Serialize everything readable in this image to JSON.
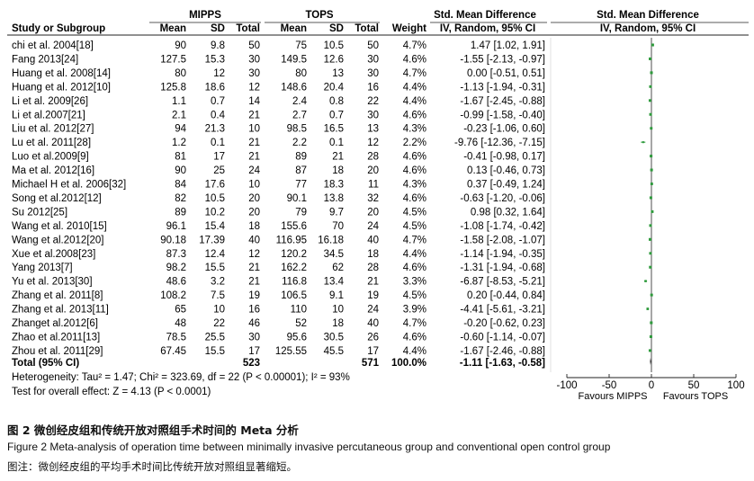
{
  "headers": {
    "group1": "MIPPS",
    "group2": "TOPS",
    "smd_text": "Std. Mean Difference",
    "smd_plot": "Std. Mean Difference",
    "study": "Study or Subgroup",
    "mean1": "Mean",
    "sd1": "SD",
    "total1": "Total",
    "mean2": "Mean",
    "sd2": "SD",
    "total2": "Total",
    "weight": "Weight",
    "method_text": "IV, Random, 95% CI",
    "method_plot": "IV, Random, 95% CI"
  },
  "chart_data": {
    "type": "forest",
    "studies": [
      {
        "name": "chi et al. 2004[18]",
        "mean1": "90",
        "sd1": "9.8",
        "total1": "50",
        "mean2": "75",
        "sd2": "10.5",
        "total2": "50",
        "weight": "4.7%",
        "ci_text": "1.47 [1.02, 1.91]",
        "smd": 1.47,
        "lo": 1.02,
        "hi": 1.91
      },
      {
        "name": "Fang 2013[24]",
        "mean1": "127.5",
        "sd1": "15.3",
        "total1": "30",
        "mean2": "149.5",
        "sd2": "12.6",
        "total2": "30",
        "weight": "4.6%",
        "ci_text": "-1.55 [-2.13, -0.97]",
        "smd": -1.55,
        "lo": -2.13,
        "hi": -0.97
      },
      {
        "name": "Huang et al. 2008[14]",
        "mean1": "80",
        "sd1": "12",
        "total1": "30",
        "mean2": "80",
        "sd2": "13",
        "total2": "30",
        "weight": "4.7%",
        "ci_text": "0.00 [-0.51, 0.51]",
        "smd": 0.0,
        "lo": -0.51,
        "hi": 0.51
      },
      {
        "name": "Huang et al. 2012[10]",
        "mean1": "125.8",
        "sd1": "18.6",
        "total1": "12",
        "mean2": "148.6",
        "sd2": "20.4",
        "total2": "16",
        "weight": "4.4%",
        "ci_text": "-1.13 [-1.94, -0.31]",
        "smd": -1.13,
        "lo": -1.94,
        "hi": -0.31
      },
      {
        "name": "Li  et al. 2009[26]",
        "mean1": "1.1",
        "sd1": "0.7",
        "total1": "14",
        "mean2": "2.4",
        "sd2": "0.8",
        "total2": "22",
        "weight": "4.4%",
        "ci_text": "-1.67 [-2.45, -0.88]",
        "smd": -1.67,
        "lo": -2.45,
        "hi": -0.88
      },
      {
        "name": "Li et al.2007[21]",
        "mean1": "2.1",
        "sd1": "0.4",
        "total1": "21",
        "mean2": "2.7",
        "sd2": "0.7",
        "total2": "30",
        "weight": "4.6%",
        "ci_text": "-0.99 [-1.58, -0.40]",
        "smd": -0.99,
        "lo": -1.58,
        "hi": -0.4
      },
      {
        "name": "Liu et al. 2012[27]",
        "mean1": "94",
        "sd1": "21.3",
        "total1": "10",
        "mean2": "98.5",
        "sd2": "16.5",
        "total2": "13",
        "weight": "4.3%",
        "ci_text": "-0.23 [-1.06, 0.60]",
        "smd": -0.23,
        "lo": -1.06,
        "hi": 0.6
      },
      {
        "name": "Lu et al. 2011[28]",
        "mean1": "1.2",
        "sd1": "0.1",
        "total1": "21",
        "mean2": "2.2",
        "sd2": "0.1",
        "total2": "12",
        "weight": "2.2%",
        "ci_text": "-9.76 [-12.36, -7.15]",
        "smd": -9.76,
        "lo": -12.36,
        "hi": -7.15
      },
      {
        "name": "Luo et al.2009[9]",
        "mean1": "81",
        "sd1": "17",
        "total1": "21",
        "mean2": "89",
        "sd2": "21",
        "total2": "28",
        "weight": "4.6%",
        "ci_text": "-0.41 [-0.98, 0.17]",
        "smd": -0.41,
        "lo": -0.98,
        "hi": 0.17
      },
      {
        "name": "Ma et al. 2012[16]",
        "mean1": "90",
        "sd1": "25",
        "total1": "24",
        "mean2": "87",
        "sd2": "18",
        "total2": "20",
        "weight": "4.6%",
        "ci_text": "0.13 [-0.46, 0.73]",
        "smd": 0.13,
        "lo": -0.46,
        "hi": 0.73
      },
      {
        "name": "Michael H et al. 2006[32]",
        "mean1": "84",
        "sd1": "17.6",
        "total1": "10",
        "mean2": "77",
        "sd2": "18.3",
        "total2": "11",
        "weight": "4.3%",
        "ci_text": "0.37 [-0.49, 1.24]",
        "smd": 0.37,
        "lo": -0.49,
        "hi": 1.24
      },
      {
        "name": "Song  et al.2012[12]",
        "mean1": "82",
        "sd1": "10.5",
        "total1": "20",
        "mean2": "90.1",
        "sd2": "13.8",
        "total2": "32",
        "weight": "4.6%",
        "ci_text": "-0.63 [-1.20, -0.06]",
        "smd": -0.63,
        "lo": -1.2,
        "hi": -0.06
      },
      {
        "name": "Su 2012[25]",
        "mean1": "89",
        "sd1": "10.2",
        "total1": "20",
        "mean2": "79",
        "sd2": "9.7",
        "total2": "20",
        "weight": "4.5%",
        "ci_text": "0.98 [0.32, 1.64]",
        "smd": 0.98,
        "lo": 0.32,
        "hi": 1.64
      },
      {
        "name": "Wang et al. 2010[15]",
        "mean1": "96.1",
        "sd1": "15.4",
        "total1": "18",
        "mean2": "155.6",
        "sd2": "70",
        "total2": "24",
        "weight": "4.5%",
        "ci_text": "-1.08 [-1.74, -0.42]",
        "smd": -1.08,
        "lo": -1.74,
        "hi": -0.42
      },
      {
        "name": "Wang et al.2012[20]",
        "mean1": "90.18",
        "sd1": "17.39",
        "total1": "40",
        "mean2": "116.95",
        "sd2": "16.18",
        "total2": "40",
        "weight": "4.7%",
        "ci_text": "-1.58 [-2.08, -1.07]",
        "smd": -1.58,
        "lo": -2.08,
        "hi": -1.07
      },
      {
        "name": "Xue et al.2008[23]",
        "mean1": "87.3",
        "sd1": "12.4",
        "total1": "12",
        "mean2": "120.2",
        "sd2": "34.5",
        "total2": "18",
        "weight": "4.4%",
        "ci_text": "-1.14 [-1.94, -0.35]",
        "smd": -1.14,
        "lo": -1.94,
        "hi": -0.35
      },
      {
        "name": "Yang 2013[7]",
        "mean1": "98.2",
        "sd1": "15.5",
        "total1": "21",
        "mean2": "162.2",
        "sd2": "62",
        "total2": "28",
        "weight": "4.6%",
        "ci_text": "-1.31 [-1.94, -0.68]",
        "smd": -1.31,
        "lo": -1.94,
        "hi": -0.68
      },
      {
        "name": "Yu et al. 2013[30]",
        "mean1": "48.6",
        "sd1": "3.2",
        "total1": "21",
        "mean2": "116.8",
        "sd2": "13.4",
        "total2": "21",
        "weight": "3.3%",
        "ci_text": "-6.87 [-8.53, -5.21]",
        "smd": -6.87,
        "lo": -8.53,
        "hi": -5.21
      },
      {
        "name": "Zhang et al. 2011[8]",
        "mean1": "108.2",
        "sd1": "7.5",
        "total1": "19",
        "mean2": "106.5",
        "sd2": "9.1",
        "total2": "19",
        "weight": "4.5%",
        "ci_text": "0.20 [-0.44, 0.84]",
        "smd": 0.2,
        "lo": -0.44,
        "hi": 0.84
      },
      {
        "name": "Zhang et al. 2013[11]",
        "mean1": "65",
        "sd1": "10",
        "total1": "16",
        "mean2": "110",
        "sd2": "10",
        "total2": "24",
        "weight": "3.9%",
        "ci_text": "-4.41 [-5.61, -3.21]",
        "smd": -4.41,
        "lo": -5.61,
        "hi": -3.21
      },
      {
        "name": "Zhanget al.2012[6]",
        "mean1": "48",
        "sd1": "22",
        "total1": "46",
        "mean2": "52",
        "sd2": "18",
        "total2": "40",
        "weight": "4.7%",
        "ci_text": "-0.20 [-0.62, 0.23]",
        "smd": -0.2,
        "lo": -0.62,
        "hi": 0.23
      },
      {
        "name": "Zhao et al.2011[13]",
        "mean1": "78.5",
        "sd1": "25.5",
        "total1": "30",
        "mean2": "95.6",
        "sd2": "30.5",
        "total2": "26",
        "weight": "4.6%",
        "ci_text": "-0.60 [-1.14, -0.07]",
        "smd": -0.6,
        "lo": -1.14,
        "hi": -0.07
      },
      {
        "name": "Zhou  et al. 2011[29]",
        "mean1": "67.45",
        "sd1": "15.5",
        "total1": "17",
        "mean2": "125.55",
        "sd2": "45.5",
        "total2": "17",
        "weight": "4.4%",
        "ci_text": "-1.67 [-2.46, -0.88]",
        "smd": -1.67,
        "lo": -2.46,
        "hi": -0.88
      }
    ],
    "total": {
      "label": "Total (95% CI)",
      "total1": "523",
      "total2": "571",
      "weight": "100.0%",
      "ci_text": "-1.11 [-1.63, -0.58]",
      "smd": -1.11,
      "lo": -1.63,
      "hi": -0.58
    },
    "heterogeneity": "Heterogeneity: Tau² = 1.47; Chi² = 323.69, df = 22 (P < 0.00001); I² = 93%",
    "overall_effect": "Test for overall effect: Z = 4.13 (P < 0.0001)",
    "xlim": [
      -100,
      100
    ],
    "xticks": [
      -100,
      -50,
      0,
      50,
      100
    ],
    "xtick_labels": [
      "-100",
      "-50",
      "0",
      "50",
      "100"
    ],
    "favours_left": "Favours MIPPS",
    "favours_right": "Favours TOPS"
  },
  "caption": {
    "title_cn": "图 2   微创经皮组和传统开放对照组手术时间的 Meta 分析",
    "title_en": "Figure 2   Meta-analysis of operation time between minimally invasive percutaneous group and conventional open control group",
    "note_cn": "图注：微创经皮组的平均手术时间比传统开放对照组显著缩短。"
  },
  "colors": {
    "marker": "#2e9a3c",
    "text": "#111111",
    "line": "#222222"
  }
}
